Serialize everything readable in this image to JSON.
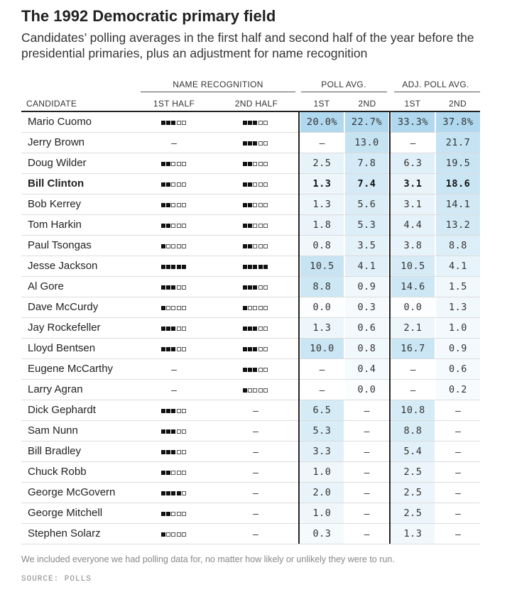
{
  "title": "The 1992 Democratic primary field",
  "subtitle": "Candidates’ polling averages in the first half and second half of the year before the presidential primaries, plus an adjustment for name recognition",
  "footnote": "We included everyone we had polling data for, no matter how likely or unlikely they were to run.",
  "source": "SOURCE: POLLS",
  "colors": {
    "text": "#222222",
    "shade_base": "#9fd0ea",
    "square_on": "#111111"
  },
  "chart_data": {
    "type": "table",
    "group_headers": [
      "NAME RECOGNITION",
      "POLL AVG.",
      "ADJ. POLL AVG."
    ],
    "column_headers": [
      "CANDIDATE",
      "1ST HALF",
      "2ND HALF",
      "1ST",
      "2ND",
      "1ST",
      "2ND"
    ],
    "rows": [
      {
        "name": "Mario Cuomo",
        "nr1": 3,
        "nr2": 3,
        "p1": "20.0%",
        "p2": "22.7%",
        "a1": "33.3%",
        "a2": "37.8%"
      },
      {
        "name": "Jerry Brown",
        "nr1": null,
        "nr2": 3,
        "p1": "–",
        "p2": "13.0",
        "a1": "–",
        "a2": "21.7"
      },
      {
        "name": "Doug Wilder",
        "nr1": 2,
        "nr2": 2,
        "p1": "2.5",
        "p2": "7.8",
        "a1": "6.3",
        "a2": "19.5"
      },
      {
        "name": "Bill Clinton",
        "bold": true,
        "nr1": 2,
        "nr2": 2,
        "p1": "1.3",
        "p2": "7.4",
        "a1": "3.1",
        "a2": "18.6"
      },
      {
        "name": "Bob Kerrey",
        "nr1": 2,
        "nr2": 2,
        "p1": "1.3",
        "p2": "5.6",
        "a1": "3.1",
        "a2": "14.1"
      },
      {
        "name": "Tom Harkin",
        "nr1": 2,
        "nr2": 2,
        "p1": "1.8",
        "p2": "5.3",
        "a1": "4.4",
        "a2": "13.2"
      },
      {
        "name": "Paul Tsongas",
        "nr1": 1,
        "nr2": 2,
        "p1": "0.8",
        "p2": "3.5",
        "a1": "3.8",
        "a2": "8.8"
      },
      {
        "name": "Jesse Jackson",
        "nr1": 5,
        "nr2": 5,
        "p1": "10.5",
        "p2": "4.1",
        "a1": "10.5",
        "a2": "4.1"
      },
      {
        "name": "Al Gore",
        "nr1": 3,
        "nr2": 3,
        "p1": "8.8",
        "p2": "0.9",
        "a1": "14.6",
        "a2": "1.5"
      },
      {
        "name": "Dave McCurdy",
        "nr1": 1,
        "nr2": 1,
        "p1": "0.0",
        "p2": "0.3",
        "a1": "0.0",
        "a2": "1.3"
      },
      {
        "name": "Jay Rockefeller",
        "nr1": 3,
        "nr2": 3,
        "p1": "1.3",
        "p2": "0.6",
        "a1": "2.1",
        "a2": "1.0"
      },
      {
        "name": "Lloyd Bentsen",
        "nr1": 3,
        "nr2": 3,
        "p1": "10.0",
        "p2": "0.8",
        "a1": "16.7",
        "a2": "0.9"
      },
      {
        "name": "Eugene McCarthy",
        "nr1": null,
        "nr2": 3,
        "p1": "–",
        "p2": "0.4",
        "a1": "–",
        "a2": "0.6"
      },
      {
        "name": "Larry Agran",
        "nr1": null,
        "nr2": 1,
        "p1": "–",
        "p2": "0.0",
        "a1": "–",
        "a2": "0.2"
      },
      {
        "name": "Dick Gephardt",
        "nr1": 3,
        "nr2": null,
        "p1": "6.5",
        "p2": "–",
        "a1": "10.8",
        "a2": "–"
      },
      {
        "name": "Sam Nunn",
        "nr1": 3,
        "nr2": null,
        "p1": "5.3",
        "p2": "–",
        "a1": "8.8",
        "a2": "–"
      },
      {
        "name": "Bill Bradley",
        "nr1": 3,
        "nr2": null,
        "p1": "3.3",
        "p2": "–",
        "a1": "5.4",
        "a2": "–"
      },
      {
        "name": "Chuck Robb",
        "nr1": 2,
        "nr2": null,
        "p1": "1.0",
        "p2": "–",
        "a1": "2.5",
        "a2": "–"
      },
      {
        "name": "George McGovern",
        "nr1": 4,
        "nr2": null,
        "p1": "2.0",
        "p2": "–",
        "a1": "2.5",
        "a2": "–"
      },
      {
        "name": "George Mitchell",
        "nr1": 2,
        "nr2": null,
        "p1": "1.0",
        "p2": "–",
        "a1": "2.5",
        "a2": "–"
      },
      {
        "name": "Stephen Solarz",
        "nr1": 1,
        "nr2": null,
        "p1": "0.3",
        "p2": "–",
        "a1": "1.3",
        "a2": "–"
      }
    ]
  }
}
